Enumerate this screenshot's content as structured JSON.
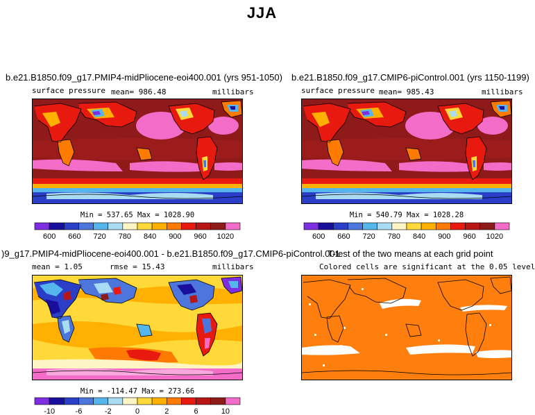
{
  "figure": {
    "title": "JJA"
  },
  "panels": [
    {
      "title": "b.e21.B1850.f09_g17.PMIP4-midPliocene-eoi400.001 (yrs 951-1050)",
      "left_label": "surface pressure",
      "center_label": "mean= 986.48",
      "right_label": "millibars",
      "minmax": "Min = 537.65  Max = 1028.90"
    },
    {
      "title": "b.e21.B1850.f09_g17.CMIP6-piControl.001 (yrs 1150-1199)",
      "left_label": "surface pressure",
      "center_label": "mean= 985.43",
      "right_label": "millibars",
      "minmax": "Min = 540.79  Max = 1028.28"
    },
    {
      "title": ")9_g17.PMIP4-midPliocene-eoi400.001 - b.e21.B1850.f09_g17.CMIP6-piControl.001",
      "left_label": "mean =    1.05",
      "center_label": "rmse =  15.43",
      "right_label": "millibars",
      "minmax": "Min = -114.47  Max = 273.66"
    },
    {
      "title": "T-test of the two means at each grid point",
      "subtitle": "Colored cells are significant at the 0.05 level"
    }
  ],
  "colorbars": {
    "absolute": {
      "colors": [
        "#7c2ee0",
        "#1a0f9c",
        "#2a3ec8",
        "#4c76dc",
        "#55b6ee",
        "#a9dcf2",
        "#fdf6c4",
        "#ffd83a",
        "#ffb000",
        "#ff7a00",
        "#e81a10",
        "#b81515",
        "#8e1a1a",
        "#f26cc8"
      ],
      "tick_labels": [
        "600",
        "660",
        "720",
        "780",
        "840",
        "900",
        "960",
        "1020"
      ]
    },
    "difference": {
      "colors": [
        "#7c2ee0",
        "#1a0f9c",
        "#2a3ec8",
        "#4c76dc",
        "#55b6ee",
        "#a9dcf2",
        "#fdf6c4",
        "#ffd83a",
        "#ffb000",
        "#ff7a00",
        "#e81a10",
        "#b81515",
        "#8e1a1a",
        "#f26cc8"
      ],
      "tick_labels": [
        "-10",
        "-6",
        "-2",
        "0",
        "2",
        "6",
        "10"
      ]
    }
  },
  "colors": {
    "ocean_high": "#8e1a1a",
    "subtropical_high": "#f26cc8",
    "ttest_fill": "#ff7f0e",
    "diff_background": "#ffd83a"
  }
}
